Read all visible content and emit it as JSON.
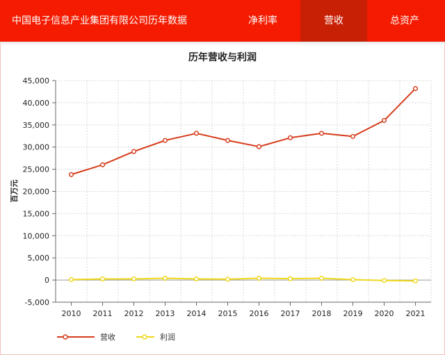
{
  "header": {
    "title": "中国电子信息产业集团有限公司历年数据",
    "tabs": [
      {
        "label": "净利率",
        "active": false
      },
      {
        "label": "营收",
        "active": true
      },
      {
        "label": "总资产",
        "active": false
      }
    ]
  },
  "colors": {
    "header_bg": "#f41b00",
    "active_tab": "#c82005",
    "revenue": "#d63b1a",
    "profit": "#f0d81a"
  },
  "chart_data": {
    "type": "line",
    "title": "历年营收与利润",
    "ylabel": "百万元",
    "xlabel": "",
    "categories": [
      "2010",
      "2011",
      "2012",
      "2013",
      "2014",
      "2015",
      "2016",
      "2017",
      "2018",
      "2019",
      "2020",
      "2021"
    ],
    "ylim": [
      -5000,
      45000
    ],
    "yticks": [
      -5000,
      0,
      5000,
      10000,
      15000,
      20000,
      25000,
      30000,
      35000,
      40000,
      45000
    ],
    "ytick_labels": [
      "-5,000",
      "0",
      "5,000",
      "10,000",
      "15,000",
      "20,000",
      "25,000",
      "30,000",
      "35,000",
      "40,000",
      "45,000"
    ],
    "grid": true,
    "legend_position": "bottom-left",
    "series": [
      {
        "name": "营收",
        "color": "#d63b1a",
        "values": [
          23800,
          26000,
          29000,
          31500,
          33100,
          31500,
          30100,
          32100,
          33100,
          32400,
          36000,
          43200
        ]
      },
      {
        "name": "利润",
        "color": "#f0d81a",
        "values": [
          100,
          250,
          250,
          400,
          250,
          200,
          400,
          300,
          400,
          100,
          -100,
          -200
        ]
      }
    ]
  }
}
